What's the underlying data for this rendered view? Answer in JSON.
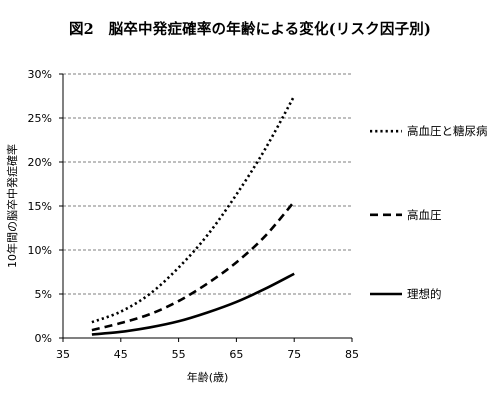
{
  "chart_data": {
    "type": "line",
    "title": "図2　脳卒中発症確率の年齢による変化(リスク因子別)",
    "xlabel": "年齢(歳)",
    "ylabel": "10年間の脳卒中発症確率",
    "xlim": [
      35,
      85
    ],
    "ylim": [
      0,
      30
    ],
    "xticks": [
      "35",
      "45",
      "55",
      "65",
      "75",
      "85"
    ],
    "yticks": [
      "0%",
      "5%",
      "10%",
      "15%",
      "20%",
      "25%",
      "30%"
    ],
    "grid": "horizontal-dashed",
    "legend_position": "right",
    "series": [
      {
        "name": "高血圧と糖尿病",
        "style": "dotted",
        "color": "#000000",
        "x": [
          40,
          45,
          50,
          55,
          60,
          65,
          70,
          75
        ],
        "y": [
          1.8,
          3.0,
          5.0,
          8.0,
          11.7,
          16.3,
          21.5,
          27.5
        ]
      },
      {
        "name": "高血圧",
        "style": "dashed",
        "color": "#000000",
        "x": [
          40,
          45,
          50,
          55,
          60,
          65,
          70,
          75
        ],
        "y": [
          0.9,
          1.7,
          2.7,
          4.2,
          6.2,
          8.6,
          11.6,
          15.5
        ]
      },
      {
        "name": "理想的",
        "style": "solid",
        "color": "#000000",
        "x": [
          40,
          45,
          50,
          55,
          60,
          65,
          70,
          75
        ],
        "y": [
          0.4,
          0.7,
          1.2,
          1.9,
          2.9,
          4.1,
          5.6,
          7.3
        ]
      }
    ]
  }
}
